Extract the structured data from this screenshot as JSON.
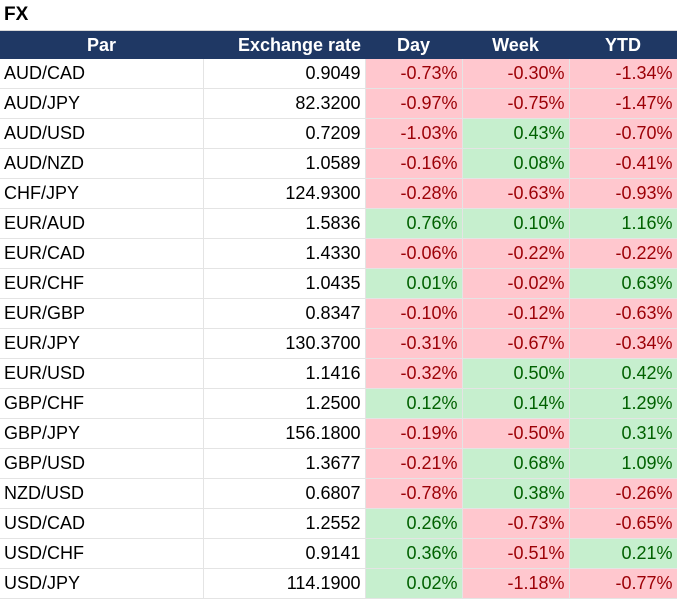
{
  "title": "FX",
  "headers": {
    "par": "Par",
    "rate": "Exchange rate",
    "day": "Day",
    "week": "Week",
    "ytd": "YTD"
  },
  "colors": {
    "header_bg": "#1f3864",
    "neg_bg": "#ffc7ce",
    "neg_text": "#9c0006",
    "pos_bg": "#c6efce",
    "pos_text": "#006100"
  },
  "rows": [
    {
      "par": "AUD/CAD",
      "rate": "0.9049",
      "day": "-0.73%",
      "week": "-0.30%",
      "ytd": "-1.34%"
    },
    {
      "par": "AUD/JPY",
      "rate": "82.3200",
      "day": "-0.97%",
      "week": "-0.75%",
      "ytd": "-1.47%"
    },
    {
      "par": "AUD/USD",
      "rate": "0.7209",
      "day": "-1.03%",
      "week": "0.43%",
      "ytd": "-0.70%"
    },
    {
      "par": "AUD/NZD",
      "rate": "1.0589",
      "day": "-0.16%",
      "week": "0.08%",
      "ytd": "-0.41%"
    },
    {
      "par": "CHF/JPY",
      "rate": "124.9300",
      "day": "-0.28%",
      "week": "-0.63%",
      "ytd": "-0.93%"
    },
    {
      "par": "EUR/AUD",
      "rate": "1.5836",
      "day": "0.76%",
      "week": "0.10%",
      "ytd": "1.16%"
    },
    {
      "par": "EUR/CAD",
      "rate": "1.4330",
      "day": "-0.06%",
      "week": "-0.22%",
      "ytd": "-0.22%"
    },
    {
      "par": "EUR/CHF",
      "rate": "1.0435",
      "day": "0.01%",
      "week": "-0.02%",
      "ytd": "0.63%"
    },
    {
      "par": "EUR/GBP",
      "rate": "0.8347",
      "day": "-0.10%",
      "week": "-0.12%",
      "ytd": "-0.63%"
    },
    {
      "par": "EUR/JPY",
      "rate": "130.3700",
      "day": "-0.31%",
      "week": "-0.67%",
      "ytd": "-0.34%"
    },
    {
      "par": "EUR/USD",
      "rate": "1.1416",
      "day": "-0.32%",
      "week": "0.50%",
      "ytd": "0.42%"
    },
    {
      "par": "GBP/CHF",
      "rate": "1.2500",
      "day": "0.12%",
      "week": "0.14%",
      "ytd": "1.29%"
    },
    {
      "par": "GBP/JPY",
      "rate": "156.1800",
      "day": "-0.19%",
      "week": "-0.50%",
      "ytd": "0.31%"
    },
    {
      "par": "GBP/USD",
      "rate": "1.3677",
      "day": "-0.21%",
      "week": "0.68%",
      "ytd": "1.09%"
    },
    {
      "par": "NZD/USD",
      "rate": "0.6807",
      "day": "-0.78%",
      "week": "0.38%",
      "ytd": "-0.26%"
    },
    {
      "par": "USD/CAD",
      "rate": "1.2552",
      "day": "0.26%",
      "week": "-0.73%",
      "ytd": "-0.65%"
    },
    {
      "par": "USD/CHF",
      "rate": "0.9141",
      "day": "0.36%",
      "week": "-0.51%",
      "ytd": "0.21%"
    },
    {
      "par": "USD/JPY",
      "rate": "114.1900",
      "day": "0.02%",
      "week": "-1.18%",
      "ytd": "-0.77%"
    }
  ]
}
